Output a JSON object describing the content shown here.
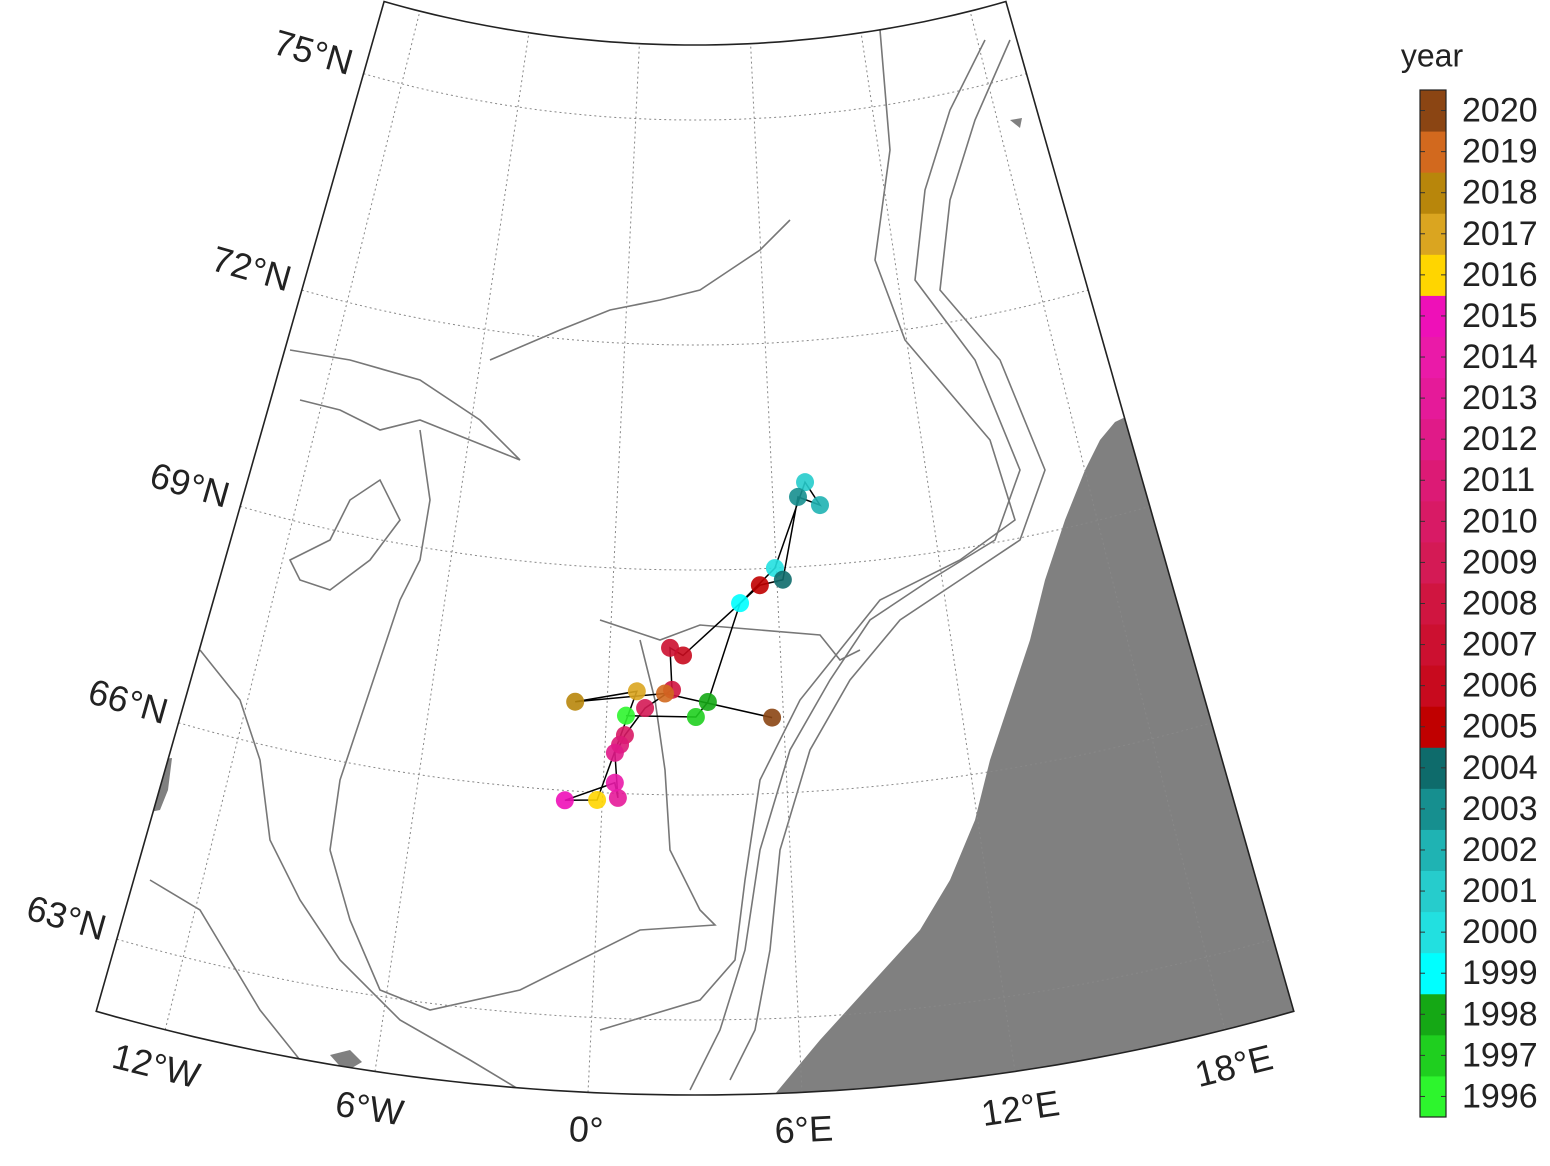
{
  "map": {
    "lonlim": [
      -14,
      20
    ],
    "latlim": [
      62,
      76
    ],
    "parallels": [
      {
        "value": 63,
        "label": "63°N"
      },
      {
        "value": 66,
        "label": "66°N"
      },
      {
        "value": 69,
        "label": "69°N"
      },
      {
        "value": 72,
        "label": "72°N"
      },
      {
        "value": 75,
        "label": "75°N"
      }
    ],
    "meridians": [
      {
        "value": -12,
        "label": "12°W"
      },
      {
        "value": -6,
        "label": "6°W"
      },
      {
        "value": 0,
        "label": "0°"
      },
      {
        "value": 6,
        "label": "6°E"
      },
      {
        "value": 12,
        "label": "12°E"
      },
      {
        "value": 18,
        "label": "18°E"
      }
    ],
    "track": [
      {
        "year": 1996,
        "lon": 0.66,
        "lat": 67.04
      },
      {
        "year": 1997,
        "lon": 3.03,
        "lat": 67.04
      },
      {
        "year": 1998,
        "lon": 3.44,
        "lat": 67.24
      },
      {
        "year": 1999,
        "lon": 4.63,
        "lat": 68.55
      },
      {
        "year": 2000,
        "lon": 5.95,
        "lat": 69.0
      },
      {
        "year": 2001,
        "lon": 7.28,
        "lat": 70.12
      },
      {
        "year": 2002,
        "lon": 7.79,
        "lat": 69.8
      },
      {
        "year": 2003,
        "lon": 6.97,
        "lat": 69.93
      },
      {
        "year": 2004,
        "lon": 6.22,
        "lat": 68.84
      },
      {
        "year": 2005,
        "lon": 5.37,
        "lat": 68.78
      },
      {
        "year": 2006,
        "lon": 2.58,
        "lat": 67.86
      },
      {
        "year": 2007,
        "lon": 2.12,
        "lat": 67.96
      },
      {
        "year": 2008,
        "lon": 2.21,
        "lat": 67.4
      },
      {
        "year": 2009,
        "lon": 1.3,
        "lat": 67.15
      },
      {
        "year": 2010,
        "lon": 0.65,
        "lat": 66.78
      },
      {
        "year": 2011,
        "lon": 0.5,
        "lat": 66.65
      },
      {
        "year": 2012,
        "lon": 0.34,
        "lat": 66.54
      },
      {
        "year": 2013,
        "lon": 0.5,
        "lat": 65.94
      },
      {
        "year": 2014,
        "lon": 0.38,
        "lat": 66.14
      },
      {
        "year": 2015,
        "lon": -1.21,
        "lat": 65.87
      },
      {
        "year": 2016,
        "lon": -0.17,
        "lat": 65.9
      },
      {
        "year": 2017,
        "lon": 1.0,
        "lat": 67.37
      },
      {
        "year": 2018,
        "lon": -1.09,
        "lat": 67.19
      },
      {
        "year": 2019,
        "lon": 1.97,
        "lat": 67.35
      },
      {
        "year": 2020,
        "lon": 5.61,
        "lat": 67.01
      }
    ]
  },
  "colorbar": {
    "title": "year",
    "years": [
      1996,
      1997,
      1998,
      1999,
      2000,
      2001,
      2002,
      2003,
      2004,
      2005,
      2006,
      2007,
      2008,
      2009,
      2010,
      2011,
      2012,
      2013,
      2014,
      2015,
      2016,
      2017,
      2018,
      2019,
      2020
    ],
    "colors": [
      "#2df52d",
      "#1fcf1f",
      "#15a815",
      "#00ffff",
      "#22e0e0",
      "#26cccc",
      "#1fb3b3",
      "#168f8f",
      "#0e6b6b",
      "#c00000",
      "#c80a1e",
      "#cc1030",
      "#d01540",
      "#d41a55",
      "#d81a65",
      "#dc1a75",
      "#e01a88",
      "#e51a99",
      "#ea1aa8",
      "#ee10b8",
      "#ffd500",
      "#daa520",
      "#b8860b",
      "#d2691e",
      "#8b4513"
    ]
  }
}
